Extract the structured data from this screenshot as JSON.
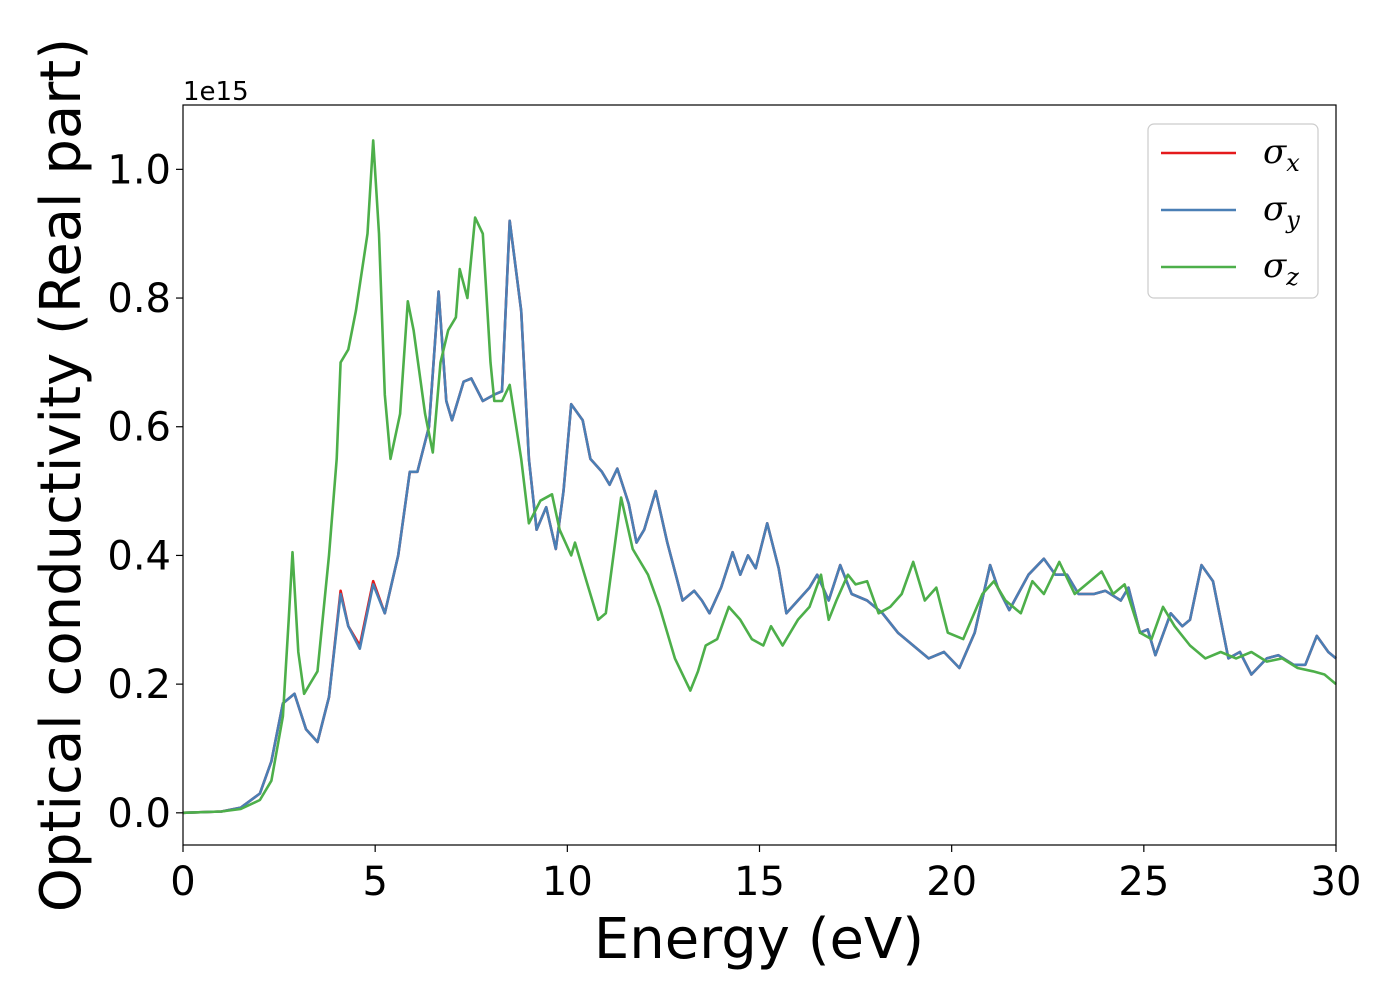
{
  "chart_data": {
    "type": "line",
    "xlabel": "Energy (eV)",
    "ylabel": "Optical conductivity (Real part)",
    "y_offset_text": "1e15",
    "xlim": [
      0,
      30
    ],
    "ylim": [
      -0.05,
      1.1
    ],
    "x_ticks": [
      0,
      5,
      10,
      15,
      20,
      25,
      30
    ],
    "x_tick_labels": [
      "0",
      "5",
      "10",
      "15",
      "20",
      "25",
      "30"
    ],
    "y_ticks": [
      0.0,
      0.2,
      0.4,
      0.6,
      0.8,
      1.0
    ],
    "y_tick_labels": [
      "0.0",
      "0.2",
      "0.4",
      "0.6",
      "0.8",
      "1.0"
    ],
    "grid": false,
    "legend_position": "top-right",
    "series": [
      {
        "name": "σx",
        "symbol": "σ",
        "subscript": "x",
        "color": "#e41a1c",
        "points": [
          [
            0,
            0
          ],
          [
            1,
            0.002
          ],
          [
            1.5,
            0.008
          ],
          [
            2,
            0.03
          ],
          [
            2.3,
            0.08
          ],
          [
            2.6,
            0.17
          ],
          [
            2.9,
            0.185
          ],
          [
            3.2,
            0.13
          ],
          [
            3.5,
            0.11
          ],
          [
            3.8,
            0.18
          ],
          [
            4.1,
            0.345
          ],
          [
            4.3,
            0.29
          ],
          [
            4.6,
            0.26
          ],
          [
            4.95,
            0.36
          ],
          [
            5.25,
            0.31
          ],
          [
            5.6,
            0.4
          ],
          [
            5.9,
            0.53
          ],
          [
            6.1,
            0.53
          ],
          [
            6.4,
            0.6
          ],
          [
            6.65,
            0.81
          ],
          [
            6.85,
            0.64
          ],
          [
            7.0,
            0.61
          ],
          [
            7.3,
            0.67
          ],
          [
            7.5,
            0.675
          ],
          [
            7.8,
            0.64
          ],
          [
            8.1,
            0.65
          ],
          [
            8.3,
            0.655
          ],
          [
            8.5,
            0.92
          ],
          [
            8.8,
            0.78
          ],
          [
            9.0,
            0.55
          ],
          [
            9.2,
            0.44
          ],
          [
            9.45,
            0.475
          ],
          [
            9.7,
            0.41
          ],
          [
            9.9,
            0.5
          ],
          [
            10.1,
            0.635
          ],
          [
            10.4,
            0.61
          ],
          [
            10.6,
            0.55
          ],
          [
            10.9,
            0.53
          ],
          [
            11.1,
            0.51
          ],
          [
            11.3,
            0.535
          ],
          [
            11.6,
            0.48
          ],
          [
            11.8,
            0.42
          ],
          [
            12.0,
            0.44
          ],
          [
            12.3,
            0.5
          ],
          [
            12.6,
            0.42
          ],
          [
            13.0,
            0.33
          ],
          [
            13.3,
            0.345
          ],
          [
            13.5,
            0.33
          ],
          [
            13.7,
            0.31
          ],
          [
            14.0,
            0.35
          ],
          [
            14.3,
            0.405
          ],
          [
            14.5,
            0.37
          ],
          [
            14.7,
            0.4
          ],
          [
            14.9,
            0.38
          ],
          [
            15.2,
            0.45
          ],
          [
            15.5,
            0.38
          ],
          [
            15.7,
            0.31
          ],
          [
            16.0,
            0.33
          ],
          [
            16.3,
            0.35
          ],
          [
            16.5,
            0.37
          ],
          [
            16.8,
            0.33
          ],
          [
            17.1,
            0.385
          ],
          [
            17.4,
            0.34
          ],
          [
            17.8,
            0.33
          ],
          [
            18.2,
            0.31
          ],
          [
            18.6,
            0.28
          ],
          [
            19.0,
            0.26
          ],
          [
            19.4,
            0.24
          ],
          [
            19.8,
            0.25
          ],
          [
            20.2,
            0.225
          ],
          [
            20.6,
            0.28
          ],
          [
            21.0,
            0.385
          ],
          [
            21.2,
            0.35
          ],
          [
            21.5,
            0.315
          ],
          [
            22.0,
            0.37
          ],
          [
            22.4,
            0.395
          ],
          [
            22.7,
            0.37
          ],
          [
            23.0,
            0.37
          ],
          [
            23.3,
            0.34
          ],
          [
            23.7,
            0.34
          ],
          [
            24.0,
            0.345
          ],
          [
            24.4,
            0.33
          ],
          [
            24.6,
            0.35
          ],
          [
            24.9,
            0.28
          ],
          [
            25.1,
            0.285
          ],
          [
            25.3,
            0.245
          ],
          [
            25.7,
            0.31
          ],
          [
            26.0,
            0.29
          ],
          [
            26.2,
            0.3
          ],
          [
            26.5,
            0.385
          ],
          [
            26.8,
            0.36
          ],
          [
            27.2,
            0.24
          ],
          [
            27.5,
            0.25
          ],
          [
            27.8,
            0.215
          ],
          [
            28.2,
            0.24
          ],
          [
            28.5,
            0.245
          ],
          [
            28.9,
            0.23
          ],
          [
            29.2,
            0.23
          ],
          [
            29.5,
            0.275
          ],
          [
            29.8,
            0.25
          ],
          [
            30,
            0.24
          ]
        ]
      },
      {
        "name": "σy",
        "symbol": "σ",
        "subscript": "y",
        "color": "#4a7fb5",
        "points": [
          [
            0,
            0
          ],
          [
            1,
            0.002
          ],
          [
            1.5,
            0.008
          ],
          [
            2,
            0.03
          ],
          [
            2.3,
            0.08
          ],
          [
            2.6,
            0.17
          ],
          [
            2.9,
            0.185
          ],
          [
            3.2,
            0.13
          ],
          [
            3.5,
            0.11
          ],
          [
            3.8,
            0.18
          ],
          [
            4.1,
            0.34
          ],
          [
            4.3,
            0.29
          ],
          [
            4.6,
            0.255
          ],
          [
            4.95,
            0.355
          ],
          [
            5.25,
            0.31
          ],
          [
            5.6,
            0.4
          ],
          [
            5.9,
            0.53
          ],
          [
            6.1,
            0.53
          ],
          [
            6.4,
            0.6
          ],
          [
            6.65,
            0.81
          ],
          [
            6.85,
            0.64
          ],
          [
            7.0,
            0.61
          ],
          [
            7.3,
            0.67
          ],
          [
            7.5,
            0.675
          ],
          [
            7.8,
            0.64
          ],
          [
            8.1,
            0.65
          ],
          [
            8.3,
            0.655
          ],
          [
            8.5,
            0.92
          ],
          [
            8.8,
            0.78
          ],
          [
            9.0,
            0.55
          ],
          [
            9.2,
            0.44
          ],
          [
            9.45,
            0.475
          ],
          [
            9.7,
            0.41
          ],
          [
            9.9,
            0.5
          ],
          [
            10.1,
            0.635
          ],
          [
            10.4,
            0.61
          ],
          [
            10.6,
            0.55
          ],
          [
            10.9,
            0.53
          ],
          [
            11.1,
            0.51
          ],
          [
            11.3,
            0.535
          ],
          [
            11.6,
            0.48
          ],
          [
            11.8,
            0.42
          ],
          [
            12.0,
            0.44
          ],
          [
            12.3,
            0.5
          ],
          [
            12.6,
            0.42
          ],
          [
            13.0,
            0.33
          ],
          [
            13.3,
            0.345
          ],
          [
            13.5,
            0.33
          ],
          [
            13.7,
            0.31
          ],
          [
            14.0,
            0.35
          ],
          [
            14.3,
            0.405
          ],
          [
            14.5,
            0.37
          ],
          [
            14.7,
            0.4
          ],
          [
            14.9,
            0.38
          ],
          [
            15.2,
            0.45
          ],
          [
            15.5,
            0.38
          ],
          [
            15.7,
            0.31
          ],
          [
            16.0,
            0.33
          ],
          [
            16.3,
            0.35
          ],
          [
            16.5,
            0.37
          ],
          [
            16.8,
            0.33
          ],
          [
            17.1,
            0.385
          ],
          [
            17.4,
            0.34
          ],
          [
            17.8,
            0.33
          ],
          [
            18.2,
            0.31
          ],
          [
            18.6,
            0.28
          ],
          [
            19.0,
            0.26
          ],
          [
            19.4,
            0.24
          ],
          [
            19.8,
            0.25
          ],
          [
            20.2,
            0.225
          ],
          [
            20.6,
            0.28
          ],
          [
            21.0,
            0.385
          ],
          [
            21.2,
            0.35
          ],
          [
            21.5,
            0.315
          ],
          [
            22.0,
            0.37
          ],
          [
            22.4,
            0.395
          ],
          [
            22.7,
            0.37
          ],
          [
            23.0,
            0.37
          ],
          [
            23.3,
            0.34
          ],
          [
            23.7,
            0.34
          ],
          [
            24.0,
            0.345
          ],
          [
            24.4,
            0.33
          ],
          [
            24.6,
            0.35
          ],
          [
            24.9,
            0.28
          ],
          [
            25.1,
            0.285
          ],
          [
            25.3,
            0.245
          ],
          [
            25.7,
            0.31
          ],
          [
            26.0,
            0.29
          ],
          [
            26.2,
            0.3
          ],
          [
            26.5,
            0.385
          ],
          [
            26.8,
            0.36
          ],
          [
            27.2,
            0.24
          ],
          [
            27.5,
            0.25
          ],
          [
            27.8,
            0.215
          ],
          [
            28.2,
            0.24
          ],
          [
            28.5,
            0.245
          ],
          [
            28.9,
            0.23
          ],
          [
            29.2,
            0.23
          ],
          [
            29.5,
            0.275
          ],
          [
            29.8,
            0.25
          ],
          [
            30,
            0.24
          ]
        ]
      },
      {
        "name": "σz",
        "symbol": "σ",
        "subscript": "z",
        "color": "#4daf4a",
        "points": [
          [
            0,
            0
          ],
          [
            1,
            0.002
          ],
          [
            1.5,
            0.006
          ],
          [
            2,
            0.02
          ],
          [
            2.3,
            0.05
          ],
          [
            2.6,
            0.15
          ],
          [
            2.75,
            0.3
          ],
          [
            2.85,
            0.405
          ],
          [
            3.0,
            0.25
          ],
          [
            3.15,
            0.185
          ],
          [
            3.3,
            0.2
          ],
          [
            3.5,
            0.22
          ],
          [
            3.8,
            0.4
          ],
          [
            4.0,
            0.55
          ],
          [
            4.1,
            0.7
          ],
          [
            4.3,
            0.72
          ],
          [
            4.5,
            0.78
          ],
          [
            4.8,
            0.9
          ],
          [
            4.95,
            1.045
          ],
          [
            5.1,
            0.9
          ],
          [
            5.25,
            0.65
          ],
          [
            5.4,
            0.55
          ],
          [
            5.65,
            0.62
          ],
          [
            5.85,
            0.795
          ],
          [
            6.0,
            0.75
          ],
          [
            6.3,
            0.62
          ],
          [
            6.5,
            0.56
          ],
          [
            6.7,
            0.7
          ],
          [
            6.9,
            0.75
          ],
          [
            7.1,
            0.77
          ],
          [
            7.2,
            0.845
          ],
          [
            7.4,
            0.8
          ],
          [
            7.6,
            0.925
          ],
          [
            7.8,
            0.9
          ],
          [
            8.0,
            0.7
          ],
          [
            8.1,
            0.64
          ],
          [
            8.3,
            0.64
          ],
          [
            8.5,
            0.665
          ],
          [
            8.8,
            0.55
          ],
          [
            9.0,
            0.45
          ],
          [
            9.3,
            0.485
          ],
          [
            9.6,
            0.495
          ],
          [
            9.8,
            0.44
          ],
          [
            10.1,
            0.4
          ],
          [
            10.2,
            0.42
          ],
          [
            10.5,
            0.36
          ],
          [
            10.8,
            0.3
          ],
          [
            11.0,
            0.31
          ],
          [
            11.4,
            0.49
          ],
          [
            11.7,
            0.41
          ],
          [
            12.1,
            0.37
          ],
          [
            12.4,
            0.32
          ],
          [
            12.8,
            0.24
          ],
          [
            13.2,
            0.19
          ],
          [
            13.4,
            0.22
          ],
          [
            13.6,
            0.26
          ],
          [
            13.9,
            0.27
          ],
          [
            14.2,
            0.32
          ],
          [
            14.5,
            0.3
          ],
          [
            14.8,
            0.27
          ],
          [
            15.1,
            0.26
          ],
          [
            15.3,
            0.29
          ],
          [
            15.6,
            0.26
          ],
          [
            16.0,
            0.3
          ],
          [
            16.3,
            0.32
          ],
          [
            16.6,
            0.37
          ],
          [
            16.8,
            0.3
          ],
          [
            17.0,
            0.33
          ],
          [
            17.3,
            0.37
          ],
          [
            17.5,
            0.355
          ],
          [
            17.8,
            0.36
          ],
          [
            18.1,
            0.31
          ],
          [
            18.4,
            0.32
          ],
          [
            18.7,
            0.34
          ],
          [
            19.0,
            0.39
          ],
          [
            19.3,
            0.33
          ],
          [
            19.6,
            0.35
          ],
          [
            19.9,
            0.28
          ],
          [
            20.3,
            0.27
          ],
          [
            20.8,
            0.34
          ],
          [
            21.1,
            0.36
          ],
          [
            21.4,
            0.33
          ],
          [
            21.8,
            0.31
          ],
          [
            22.1,
            0.36
          ],
          [
            22.4,
            0.34
          ],
          [
            22.8,
            0.39
          ],
          [
            23.2,
            0.34
          ],
          [
            23.6,
            0.36
          ],
          [
            23.9,
            0.375
          ],
          [
            24.2,
            0.34
          ],
          [
            24.5,
            0.355
          ],
          [
            24.9,
            0.28
          ],
          [
            25.2,
            0.27
          ],
          [
            25.5,
            0.32
          ],
          [
            25.8,
            0.29
          ],
          [
            26.2,
            0.26
          ],
          [
            26.6,
            0.24
          ],
          [
            27.0,
            0.25
          ],
          [
            27.4,
            0.24
          ],
          [
            27.8,
            0.25
          ],
          [
            28.2,
            0.235
          ],
          [
            28.6,
            0.24
          ],
          [
            29.0,
            0.225
          ],
          [
            29.4,
            0.22
          ],
          [
            29.7,
            0.215
          ],
          [
            30,
            0.2
          ]
        ]
      }
    ]
  }
}
